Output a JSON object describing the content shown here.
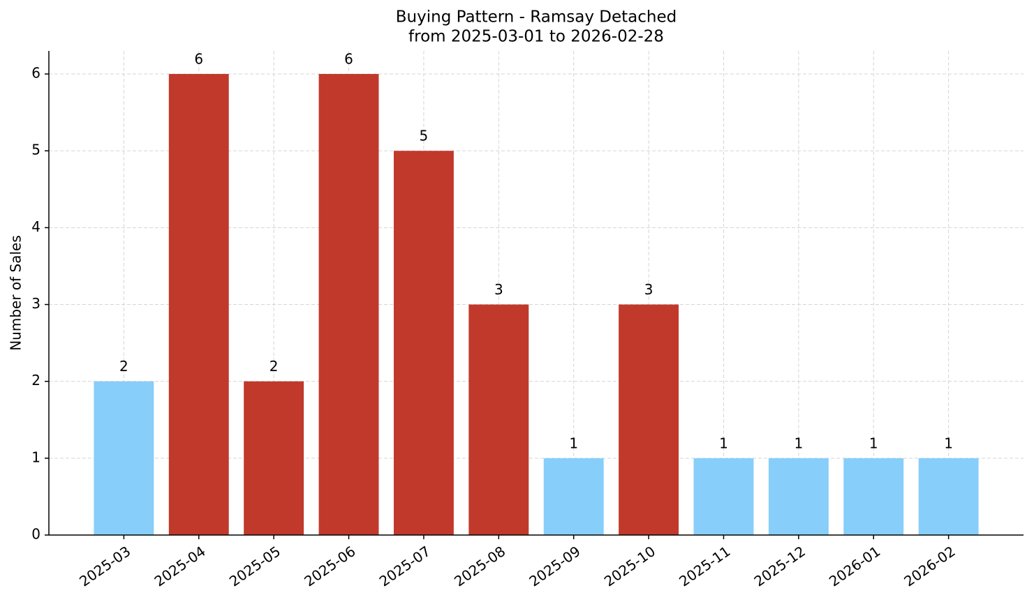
{
  "chart_data": {
    "type": "bar",
    "title": "Buying Pattern - Ramsay Detached",
    "subtitle": "from 2025-03-01 to 2026-02-28",
    "y_label": "Number of Sales",
    "categories": [
      "2025-03",
      "2025-04",
      "2025-05",
      "2025-06",
      "2025-07",
      "2025-08",
      "2025-09",
      "2025-10",
      "2025-11",
      "2025-12",
      "2026-01",
      "2026-02"
    ],
    "values": [
      2,
      6,
      2,
      6,
      5,
      3,
      1,
      3,
      1,
      1,
      1,
      1
    ],
    "colors": [
      "#87cefa",
      "#c0392b",
      "#c0392b",
      "#c0392b",
      "#c0392b",
      "#c0392b",
      "#87cefa",
      "#c0392b",
      "#87cefa",
      "#87cefa",
      "#87cefa",
      "#87cefa"
    ],
    "ylim": [
      0,
      6.3
    ],
    "yticks": [
      0,
      1,
      2,
      3,
      4,
      5,
      6
    ],
    "grid": true
  }
}
